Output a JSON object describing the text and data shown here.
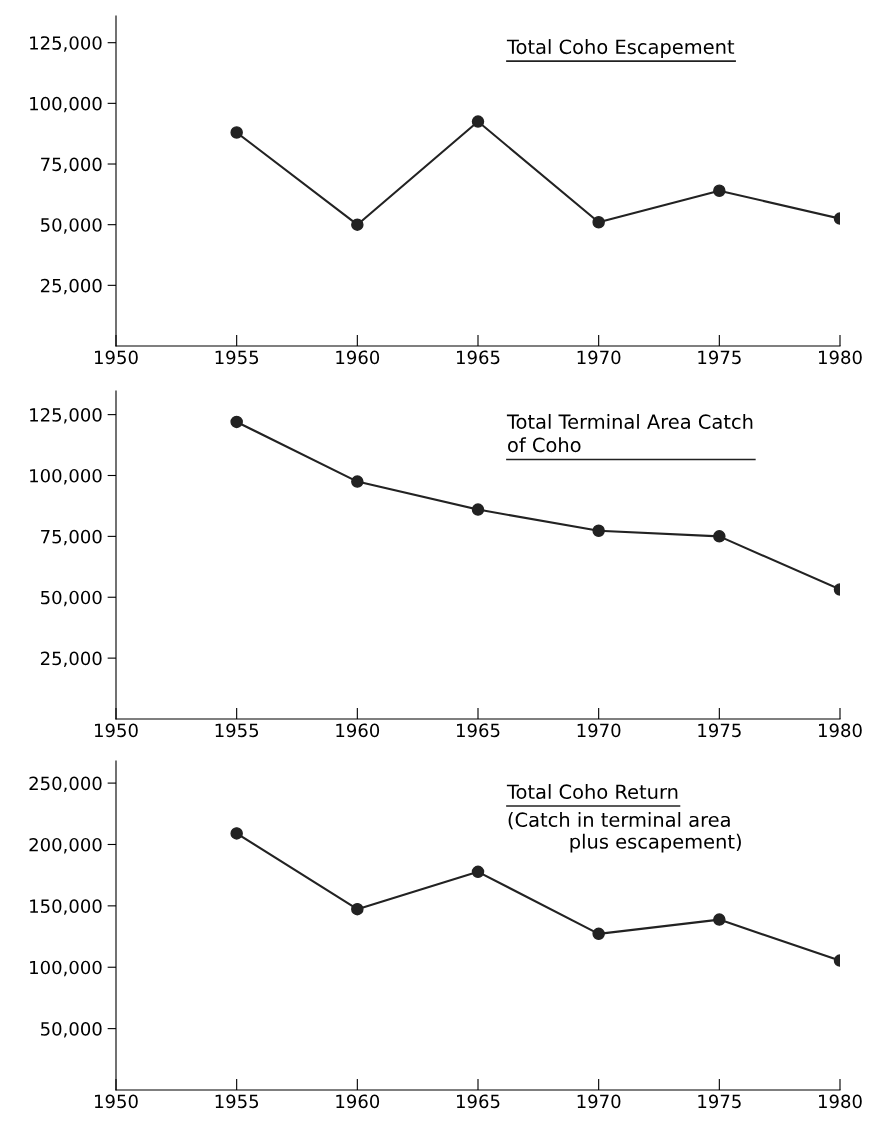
{
  "chart_data": [
    {
      "type": "line",
      "title": "Total Coho Escapement",
      "x": [
        1955,
        1960,
        1965,
        1970,
        1975,
        1980
      ],
      "series": [
        {
          "color": "#222222",
          "values": [
            88000,
            50000,
            92500,
            51000,
            64000,
            52500
          ]
        }
      ],
      "xlim": [
        1950,
        1980
      ],
      "xticks": [
        1950,
        1955,
        1960,
        1965,
        1970,
        1975,
        1980
      ],
      "ylim": [
        0,
        136000
      ],
      "yticks": [
        {
          "value": 25000,
          "label": "25,000"
        },
        {
          "value": 50000,
          "label": "50,000"
        },
        {
          "value": 75000,
          "label": "75,000"
        },
        {
          "value": 100000,
          "label": "100,000"
        },
        {
          "value": 125000,
          "label": "125,000"
        }
      ],
      "marker": "circle",
      "line_style": "solid",
      "grid": false,
      "legend": false
    },
    {
      "type": "line",
      "title": "Total Terminal Area Catch\nof Coho",
      "x": [
        1955,
        1960,
        1965,
        1970,
        1975,
        1980
      ],
      "series": [
        {
          "color": "#222222",
          "values": [
            122000,
            97500,
            86000,
            77300,
            75000,
            53200
          ]
        }
      ],
      "xlim": [
        1950,
        1980
      ],
      "xticks": [
        1950,
        1955,
        1960,
        1965,
        1970,
        1975,
        1980
      ],
      "ylim": [
        0,
        134700
      ],
      "yticks": [
        {
          "value": 25000,
          "label": "25,000"
        },
        {
          "value": 50000,
          "label": "50,000"
        },
        {
          "value": 75000,
          "label": "75,000"
        },
        {
          "value": 100000,
          "label": "100,000"
        },
        {
          "value": 125000,
          "label": "125,000"
        }
      ],
      "marker": "circle",
      "line_style": "solid",
      "grid": false,
      "legend": false
    },
    {
      "type": "line",
      "title": "Total Coho Return",
      "subtitle": "(Catch in terminal area\n          plus escapement)",
      "x": [
        1955,
        1960,
        1965,
        1970,
        1975,
        1980
      ],
      "series": [
        {
          "color": "#222222",
          "values": [
            209000,
            147300,
            177700,
            127200,
            138800,
            105400
          ]
        }
      ],
      "xlim": [
        1950,
        1980
      ],
      "xticks": [
        1950,
        1955,
        1960,
        1965,
        1970,
        1975,
        1980
      ],
      "ylim": [
        0,
        268000
      ],
      "yticks": [
        {
          "value": 50000,
          "label": "50,000"
        },
        {
          "value": 100000,
          "label": "100,000"
        },
        {
          "value": 150000,
          "label": "150,000"
        },
        {
          "value": 200000,
          "label": "200,000"
        },
        {
          "value": 250000,
          "label": "250,000"
        }
      ],
      "marker": "circle",
      "line_style": "solid",
      "grid": false,
      "legend": false
    }
  ]
}
